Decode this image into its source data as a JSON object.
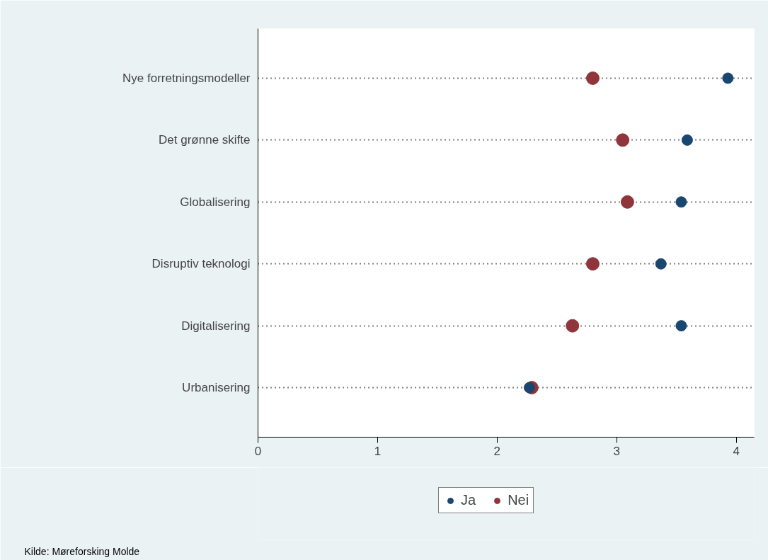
{
  "chart_data": {
    "type": "scatter",
    "orientation": "horizontal",
    "categories": [
      "Nye forretningsmodeller",
      "Det grønne skifte",
      "Globalisering",
      "Disruptiv teknologi",
      "Digitalisering",
      "Urbanisering"
    ],
    "series": [
      {
        "name": "Ja",
        "color": "#1a476f",
        "values": [
          3.93,
          3.59,
          3.54,
          3.37,
          3.54,
          2.27
        ]
      },
      {
        "name": "Nei",
        "color": "#90353b",
        "values": [
          2.8,
          3.05,
          3.09,
          2.8,
          2.63,
          2.29
        ]
      }
    ],
    "xlim": [
      0,
      4.15
    ],
    "xticks": [
      0,
      1,
      2,
      3,
      4
    ],
    "grid": "y",
    "marker": "circle",
    "legend": "bottom",
    "annotations": [
      "Kilde: Møreforsking Molde"
    ]
  }
}
